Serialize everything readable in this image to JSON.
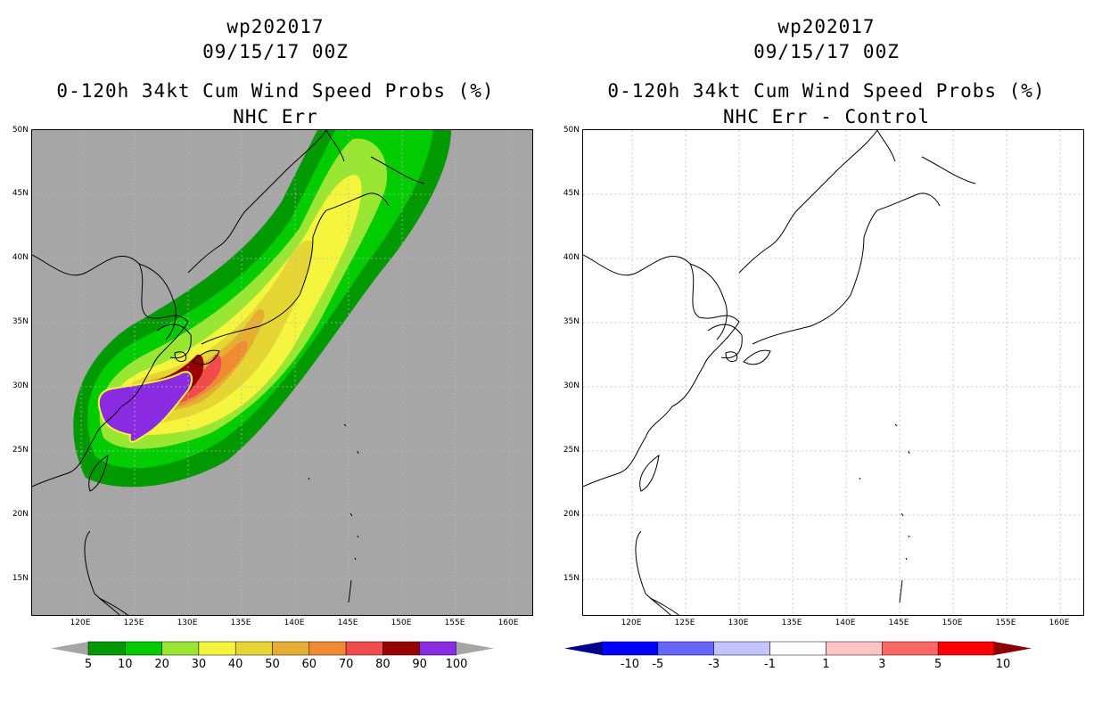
{
  "left": {
    "title_line1": "wp202017",
    "title_line2": "09/15/17 00Z",
    "title_line3": "0-120h 34kt Cum Wind Speed Probs (%)",
    "title_line4": "NHC Err",
    "lat_labels": [
      "50N",
      "45N",
      "40N",
      "35N",
      "30N",
      "25N",
      "20N",
      "15N"
    ],
    "lon_labels": [
      "120E",
      "125E",
      "130E",
      "135E",
      "140E",
      "145E",
      "150E",
      "155E",
      "160E"
    ],
    "colorbar": {
      "colors": [
        "#009a00",
        "#00cc00",
        "#99e633",
        "#f5f53d",
        "#e6d633",
        "#e6ad33",
        "#f08a33",
        "#f04c4c",
        "#990000",
        "#8a2be2"
      ],
      "end_colors": [
        "#a6a6a6",
        "#a6a6a6"
      ],
      "labels": [
        "5",
        "10",
        "20",
        "30",
        "40",
        "50",
        "60",
        "70",
        "80",
        "90",
        "100"
      ]
    }
  },
  "right": {
    "title_line1": "wp202017",
    "title_line2": "09/15/17 00Z",
    "title_line3": "0-120h 34kt Cum Wind Speed Probs (%)",
    "title_line4": "NHC Err - Control",
    "lat_labels": [
      "50N",
      "45N",
      "40N",
      "35N",
      "30N",
      "25N",
      "20N",
      "15N"
    ],
    "lon_labels": [
      "120E",
      "125E",
      "130E",
      "135E",
      "140E",
      "145E",
      "150E",
      "155E",
      "160E"
    ],
    "colorbar": {
      "colors": [
        "#0000ff",
        "#6666ff",
        "#c4c4ff",
        "#ffffff",
        "#ffc4c4",
        "#ff6666",
        "#ff0000"
      ],
      "end_colors": [
        "#00008b",
        "#8b0000"
      ],
      "labels": [
        "-10",
        "-5",
        "-3",
        "-1",
        "1",
        "3",
        "5",
        "10"
      ]
    }
  },
  "colors": {
    "land_background": "#a6a6a6",
    "grid": "#bbbbbb"
  }
}
